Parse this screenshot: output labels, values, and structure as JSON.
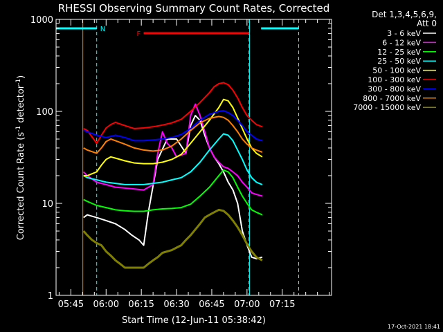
{
  "chart_data": {
    "type": "line",
    "title": "RHESSI Observing Summary Count Rates, Corrected",
    "xlabel": "Start Time (12-Jun-11 05:38:42)",
    "ylabel_main": "Corrected Count Rate (s",
    "ylabel_sup1": "-1",
    "ylabel_mid": " detector",
    "ylabel_sup2": "-1",
    "ylabel_end": ")",
    "x_range_min": [
      38.7,
      156
    ],
    "y_scale": "log",
    "ylim": [
      1,
      1000
    ],
    "y_ticks": [
      1,
      10,
      100,
      1000
    ],
    "y_tick_labels": [
      "1",
      "10",
      "100",
      "1000"
    ],
    "x_ticks_min": [
      45,
      60,
      75,
      90,
      105,
      120,
      135
    ],
    "x_tick_labels": [
      "05:45",
      "06:00",
      "06:15",
      "06:30",
      "06:45",
      "07:00",
      "07:15"
    ],
    "legend": {
      "header1": "Det 1,3,4,5,6,9,",
      "header2": "Att 0",
      "placement": "right"
    },
    "markers": {
      "night_label": "N",
      "flare_label": "F",
      "night_intervals_min": [
        [
          38.7,
          56.0
        ],
        [
          126.0,
          142.0
        ]
      ],
      "night_lines_min": [
        56.0,
        120.8,
        142.0
      ],
      "flare_interval_min": [
        76.0,
        121.0
      ]
    },
    "timestamp": "17-Oct-2021 18:41",
    "series": [
      {
        "name": "3 - 6 keV",
        "color": "#ffffff",
        "x": [
          50.4,
          52,
          56,
          60,
          64,
          68,
          71,
          74,
          76,
          78,
          82,
          86,
          90,
          94,
          96,
          98,
          100,
          102,
          104,
          106,
          108,
          110,
          112,
          114,
          116,
          118,
          120,
          122,
          124,
          126.5
        ],
        "y": [
          7,
          7.5,
          7,
          6.5,
          6,
          5.2,
          4.5,
          4,
          3.5,
          8,
          30,
          50,
          50,
          35,
          70,
          90,
          80,
          55,
          40,
          32,
          27,
          22,
          17,
          14,
          10,
          5,
          3.5,
          2.6,
          2.5,
          2.6
        ]
      },
      {
        "name": "6 - 12 keV",
        "color": "#ff00ff",
        "x": [
          50.4,
          52,
          56,
          60,
          64,
          70,
          76,
          80,
          82,
          84,
          86,
          88,
          90,
          94,
          96,
          98,
          100,
          102,
          104,
          106,
          108,
          110,
          112,
          114,
          116,
          118,
          120,
          122,
          124,
          126.5
        ],
        "y": [
          22,
          20,
          17,
          16,
          15,
          14.5,
          14,
          16,
          35,
          60,
          45,
          40,
          32,
          35,
          90,
          120,
          90,
          60,
          40,
          32,
          28,
          25,
          24,
          22,
          20,
          17,
          15,
          13,
          12.5,
          12
        ]
      },
      {
        "name": "12 - 25 keV",
        "color": "#00ff00",
        "x": [
          50.4,
          52,
          56,
          60,
          64,
          68,
          72,
          76,
          80,
          84,
          88,
          92,
          96,
          100,
          104,
          108,
          110,
          112,
          114,
          116,
          118,
          120,
          122,
          124,
          126.5
        ],
        "y": [
          11,
          10.5,
          9.5,
          9,
          8.5,
          8.3,
          8.2,
          8.2,
          8.5,
          8.7,
          8.8,
          9,
          9.8,
          12,
          15,
          20,
          23,
          22,
          19,
          15,
          12,
          10,
          8.5,
          8,
          7.5
        ]
      },
      {
        "name": "25 - 50 keV",
        "color": "#00ffff",
        "x": [
          50.4,
          52,
          56,
          60,
          64,
          68,
          72,
          76,
          80,
          84,
          88,
          92,
          96,
          100,
          104,
          108,
          110,
          112,
          114,
          116,
          118,
          120,
          122,
          124,
          126.5
        ],
        "y": [
          20,
          19,
          18,
          17,
          16.5,
          16,
          16,
          16,
          16.5,
          17,
          18,
          19,
          22,
          28,
          38,
          50,
          57,
          55,
          48,
          38,
          30,
          23,
          19,
          17,
          16
        ]
      },
      {
        "name": "50 - 100 keV",
        "color": "#ffff00",
        "x": [
          50.4,
          52,
          56,
          58,
          60,
          62,
          64,
          68,
          72,
          76,
          80,
          84,
          88,
          92,
          96,
          100,
          104,
          108,
          110,
          112,
          114,
          116,
          118,
          120,
          122,
          124,
          126.5
        ],
        "y": [
          20,
          20,
          22,
          26,
          30,
          32,
          31,
          29,
          27.5,
          27,
          27,
          28,
          30,
          34,
          45,
          60,
          80,
          110,
          135,
          130,
          110,
          85,
          65,
          50,
          40,
          35,
          32
        ]
      },
      {
        "name": "100 - 300 keV",
        "color": "#ff0000",
        "x": [
          50.4,
          52,
          56,
          58,
          60,
          62,
          64,
          68,
          72,
          76,
          80,
          84,
          88,
          92,
          96,
          100,
          104,
          106,
          108,
          110,
          112,
          114,
          116,
          118,
          120,
          122,
          124,
          126.5
        ],
        "y": [
          65,
          62,
          45,
          55,
          66,
          72,
          76,
          70,
          65,
          66,
          68,
          71,
          75,
          82,
          100,
          125,
          160,
          185,
          200,
          205,
          195,
          170,
          140,
          110,
          90,
          80,
          72,
          68
        ]
      },
      {
        "name": "300 - 800 keV",
        "color": "#0000ff",
        "x": [
          50.4,
          52,
          56,
          60,
          64,
          68,
          72,
          76,
          80,
          84,
          88,
          92,
          96,
          100,
          104,
          108,
          110,
          112,
          114,
          116,
          118,
          120,
          122,
          124,
          126.5
        ],
        "y": [
          62,
          60,
          55,
          52,
          55,
          52,
          48,
          48,
          49,
          50,
          52,
          56,
          65,
          80,
          93,
          100,
          102,
          97,
          90,
          80,
          70,
          60,
          55,
          50,
          48
        ]
      },
      {
        "name": "800 - 7000 keV",
        "color": "#ff8000",
        "x": [
          50.4,
          52,
          56,
          58,
          60,
          62,
          64,
          68,
          72,
          76,
          80,
          84,
          88,
          92,
          96,
          100,
          104,
          108,
          110,
          112,
          114,
          116,
          118,
          120,
          122,
          124,
          126.5
        ],
        "y": [
          40,
          38,
          35,
          40,
          47,
          50,
          48,
          44,
          40,
          38,
          37,
          38,
          42,
          50,
          62,
          75,
          84,
          88,
          86,
          80,
          70,
          60,
          50,
          44,
          40,
          38,
          36
        ]
      },
      {
        "name": "7000 - 15000 keV",
        "color": "#808000",
        "x": [
          50.4,
          52,
          54,
          56,
          58,
          60,
          62,
          64,
          66,
          68,
          70,
          72,
          74,
          76,
          78,
          80,
          82,
          84,
          86,
          88,
          90,
          92,
          94,
          96,
          98,
          100,
          102,
          104,
          106,
          108,
          110,
          112,
          114,
          116,
          118,
          120,
          122,
          124,
          126.5
        ],
        "y": [
          5,
          4.5,
          4,
          3.7,
          3.5,
          3,
          2.7,
          2.4,
          2.2,
          2,
          2,
          2,
          2,
          2,
          2.2,
          2.4,
          2.6,
          2.9,
          3,
          3.1,
          3.3,
          3.5,
          4,
          4.5,
          5.2,
          6,
          7,
          7.5,
          8,
          8.5,
          8.3,
          7.5,
          6.5,
          5.5,
          4.5,
          3.6,
          3,
          2.6,
          2.4
        ]
      }
    ]
  }
}
